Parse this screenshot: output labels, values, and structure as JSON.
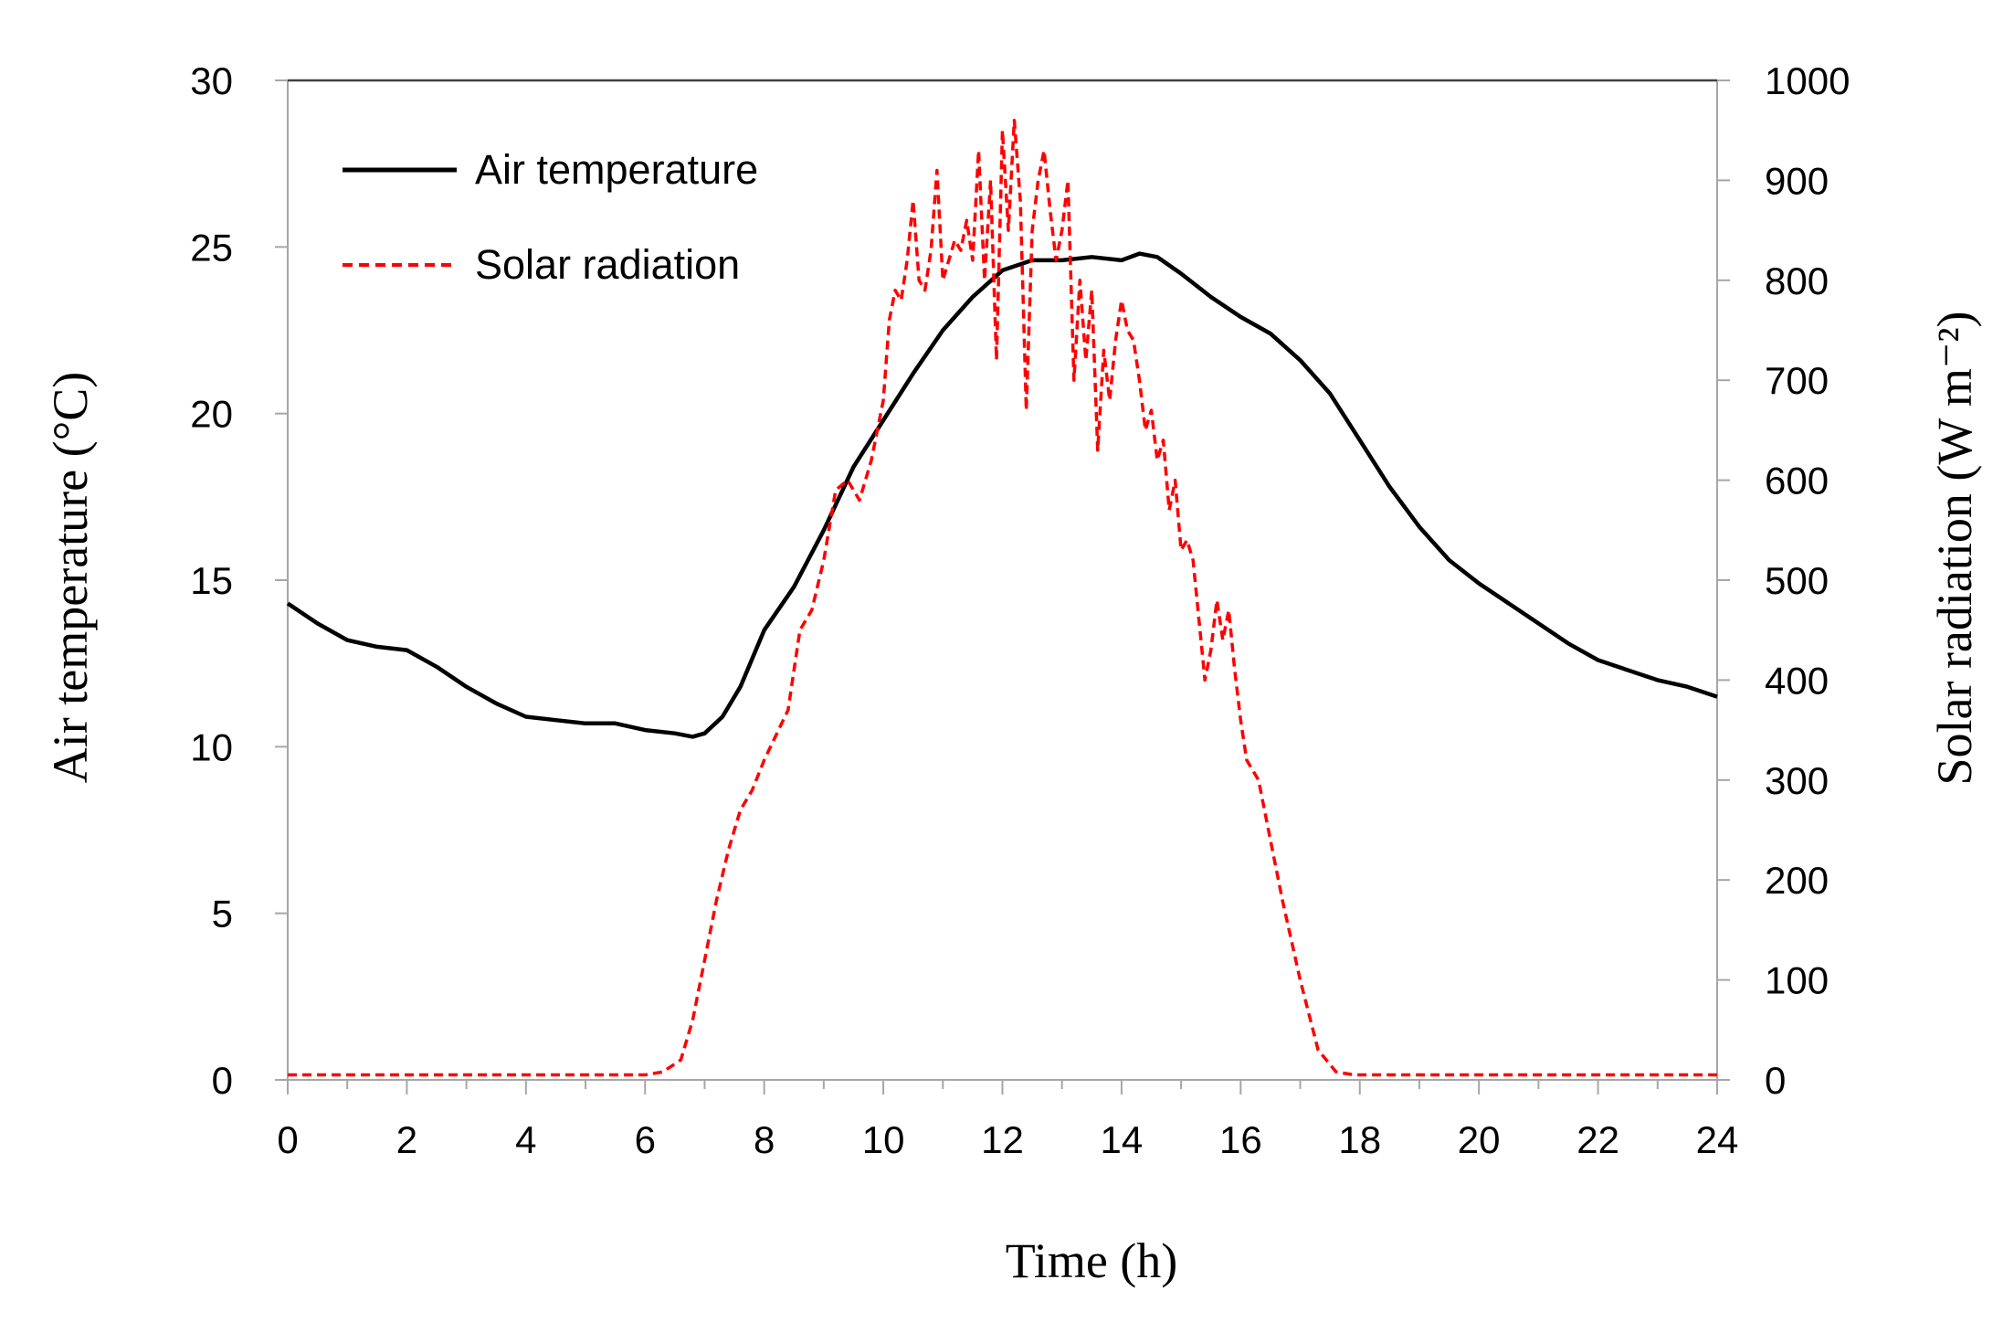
{
  "chart_data": {
    "type": "line",
    "x_axis": {
      "label": "Time (h)",
      "range": [
        0,
        24
      ],
      "ticks": [
        "0",
        "2",
        "4",
        "6",
        "8",
        "10",
        "12",
        "14",
        "16",
        "18",
        "20",
        "22",
        "24"
      ],
      "tick_values": [
        0,
        2,
        4,
        6,
        8,
        10,
        12,
        14,
        16,
        18,
        20,
        22,
        24
      ],
      "minor_step": 1
    },
    "y_left": {
      "label": "Air temperature (°C)",
      "range": [
        0,
        30
      ],
      "ticks": [
        "0",
        "5",
        "10",
        "15",
        "20",
        "25",
        "30"
      ],
      "tick_values": [
        0,
        5,
        10,
        15,
        20,
        25,
        30
      ]
    },
    "y_right": {
      "label": "Solar radiation (W m⁻²)",
      "range": [
        0,
        1000
      ],
      "ticks": [
        "0",
        "100",
        "200",
        "300",
        "400",
        "500",
        "600",
        "700",
        "800",
        "900",
        "1000"
      ],
      "tick_values": [
        0,
        100,
        200,
        300,
        400,
        500,
        600,
        700,
        800,
        900,
        1000
      ]
    },
    "legend": {
      "position": "top-left",
      "entries": [
        "Air temperature",
        "Solar radiation"
      ]
    },
    "grid": false,
    "series": [
      {
        "name": "Air temperature",
        "axis": "left",
        "color": "#000000",
        "style": "solid",
        "x": [
          0,
          0.5,
          1,
          1.5,
          2,
          2.5,
          3,
          3.5,
          4,
          4.5,
          5,
          5.5,
          6,
          6.5,
          6.8,
          7,
          7.3,
          7.6,
          8,
          8.5,
          9,
          9.5,
          10,
          10.5,
          11,
          11.5,
          12,
          12.5,
          13,
          13.5,
          14,
          14.3,
          14.6,
          15,
          15.5,
          16,
          16.5,
          17,
          17.5,
          18,
          18.5,
          19,
          19.5,
          20,
          20.5,
          21,
          21.5,
          22,
          22.5,
          23,
          23.5,
          24
        ],
        "values": [
          14.3,
          13.7,
          13.2,
          13.0,
          12.9,
          12.4,
          11.8,
          11.3,
          10.9,
          10.8,
          10.7,
          10.7,
          10.5,
          10.4,
          10.3,
          10.4,
          10.9,
          11.8,
          13.5,
          14.8,
          16.5,
          18.4,
          19.8,
          21.2,
          22.5,
          23.5,
          24.3,
          24.6,
          24.6,
          24.7,
          24.6,
          24.8,
          24.7,
          24.2,
          23.5,
          22.9,
          22.4,
          21.6,
          20.6,
          19.2,
          17.8,
          16.6,
          15.6,
          14.9,
          14.3,
          13.7,
          13.1,
          12.6,
          12.3,
          12.0,
          11.8,
          11.5
        ]
      },
      {
        "name": "Solar radiation",
        "axis": "right",
        "color": "#ff0000",
        "style": "dashed",
        "x": [
          0,
          6,
          6.3,
          6.6,
          6.8,
          7.0,
          7.2,
          7.4,
          7.6,
          7.8,
          8.0,
          8.2,
          8.4,
          8.6,
          8.8,
          9.0,
          9.2,
          9.4,
          9.6,
          9.8,
          10.0,
          10.1,
          10.2,
          10.3,
          10.4,
          10.5,
          10.6,
          10.7,
          10.8,
          10.9,
          11.0,
          11.1,
          11.2,
          11.3,
          11.4,
          11.5,
          11.6,
          11.7,
          11.8,
          11.9,
          12.0,
          12.1,
          12.2,
          12.3,
          12.4,
          12.5,
          12.6,
          12.7,
          12.8,
          12.9,
          13.0,
          13.1,
          13.2,
          13.3,
          13.4,
          13.5,
          13.6,
          13.7,
          13.8,
          13.9,
          14.0,
          14.1,
          14.2,
          14.3,
          14.4,
          14.5,
          14.6,
          14.7,
          14.8,
          14.9,
          15.0,
          15.1,
          15.2,
          15.3,
          15.4,
          15.5,
          15.6,
          15.7,
          15.8,
          15.9,
          16.0,
          16.1,
          16.2,
          16.3,
          16.5,
          16.7,
          17.0,
          17.3,
          17.6,
          17.9,
          18.2,
          24
        ],
        "values": [
          5,
          5,
          8,
          20,
          60,
          120,
          180,
          230,
          270,
          290,
          320,
          345,
          370,
          450,
          470,
          520,
          590,
          600,
          580,
          620,
          680,
          760,
          790,
          780,
          820,
          880,
          800,
          790,
          830,
          910,
          800,
          820,
          840,
          830,
          860,
          820,
          930,
          800,
          900,
          720,
          950,
          850,
          960,
          880,
          670,
          850,
          900,
          930,
          870,
          820,
          850,
          900,
          700,
          800,
          720,
          790,
          630,
          730,
          680,
          740,
          780,
          750,
          740,
          700,
          650,
          670,
          620,
          640,
          570,
          600,
          530,
          540,
          520,
          460,
          400,
          430,
          480,
          440,
          470,
          410,
          360,
          320,
          310,
          300,
          240,
          180,
          100,
          30,
          8,
          5,
          5,
          5
        ]
      }
    ]
  }
}
